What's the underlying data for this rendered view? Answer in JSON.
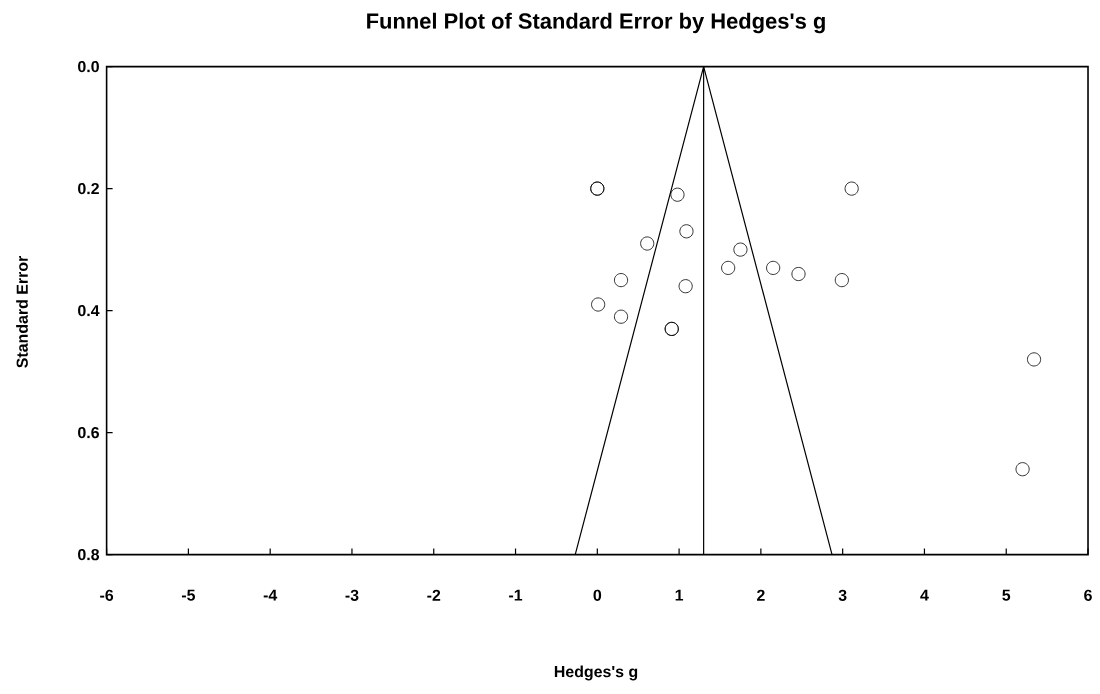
{
  "chart_data": {
    "type": "scatter",
    "title": "Funnel Plot of Standard Error by Hedges's g",
    "xlabel": "Hedges's g",
    "ylabel": "Standard Error",
    "xlim": [
      -6,
      6
    ],
    "xticks": [
      -6,
      -5,
      -4,
      -3,
      -2,
      -1,
      0,
      1,
      2,
      3,
      4,
      5,
      6
    ],
    "ylim": [
      0.8,
      0
    ],
    "yticks": [
      {
        "value": 0,
        "label": "0.0"
      },
      0.2,
      0.4,
      0.6,
      0.8
    ],
    "grid": false,
    "marker": "circle",
    "series": [
      {
        "color": "#000000",
        "x": [
          0.0,
          0.0,
          0.98,
          3.11,
          1.09,
          0.61,
          1.75,
          1.6,
          2.15,
          2.46,
          2.99,
          0.29,
          1.08,
          0.01,
          0.29,
          0.91,
          0.91,
          5.34,
          5.2
        ],
        "values": [
          0.2,
          0.2,
          0.21,
          0.2,
          0.27,
          0.29,
          0.3,
          0.33,
          0.33,
          0.34,
          0.35,
          0.35,
          0.36,
          0.39,
          0.41,
          0.43,
          0.43,
          0.48,
          0.66
        ]
      },
      {
        "type": "line",
        "color": "#000000",
        "marker": "none",
        "line_style": "solid",
        "x": [
          -0.27,
          1.3,
          2.87
        ],
        "values": [
          0.8,
          0,
          0.8
        ]
      }
    ],
    "ref_lines": [
      {
        "axis": "x",
        "value": 1.3,
        "color": "#000000",
        "line_style": "solid"
      }
    ]
  }
}
